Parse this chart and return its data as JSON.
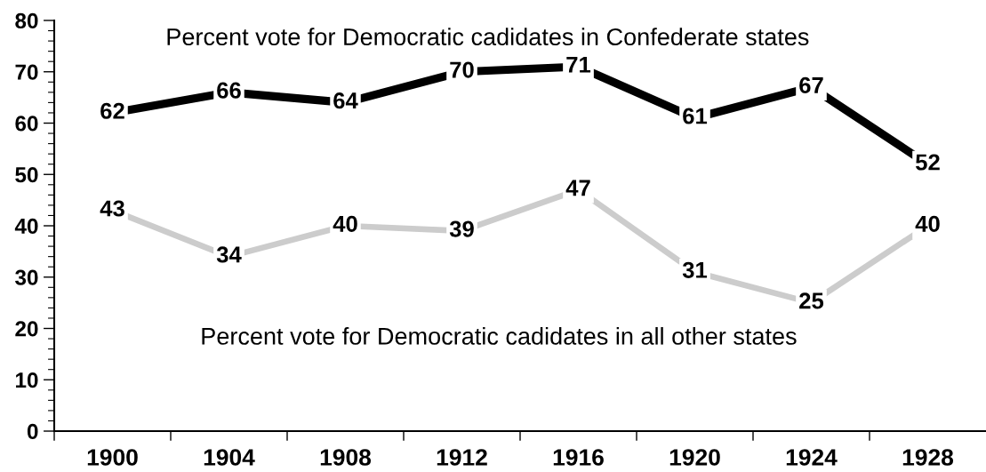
{
  "chart_data": {
    "type": "line",
    "categories": [
      "1900",
      "1904",
      "1908",
      "1912",
      "1916",
      "1920",
      "1924",
      "1928"
    ],
    "series": [
      {
        "name": "Percent vote for Democratic cadidates in Confederate states",
        "color": "#000000",
        "values": [
          62,
          66,
          64,
          70,
          71,
          61,
          67,
          52
        ]
      },
      {
        "name": "Percent vote for Democratic cadidates in all other states",
        "color": "#cccccc",
        "values": [
          43,
          34,
          40,
          39,
          47,
          31,
          25,
          40
        ]
      }
    ],
    "ylim": [
      0,
      80
    ],
    "yticks": [
      0,
      {
        "value": 2,
        "label": null
      },
      {
        "value": 4,
        "label": null
      },
      {
        "value": 6,
        "label": null
      },
      {
        "value": 8,
        "label": null
      },
      10,
      {
        "value": 12,
        "label": null
      },
      {
        "value": 14,
        "label": null
      },
      {
        "value": 16,
        "label": null
      },
      {
        "value": 18,
        "label": null
      },
      20,
      {
        "value": 22,
        "label": null
      },
      {
        "value": 24,
        "label": null
      },
      {
        "value": 26,
        "label": null
      },
      {
        "value": 28,
        "label": null
      },
      30,
      {
        "value": 32,
        "label": null
      },
      {
        "value": 34,
        "label": null
      },
      {
        "value": 36,
        "label": null
      },
      {
        "value": 38,
        "label": null
      },
      40,
      {
        "value": 42,
        "label": null
      },
      {
        "value": 44,
        "label": null
      },
      {
        "value": 46,
        "label": null
      },
      {
        "value": 48,
        "label": null
      },
      50,
      {
        "value": 52,
        "label": null
      },
      {
        "value": 54,
        "label": null
      },
      {
        "value": 56,
        "label": null
      },
      {
        "value": 58,
        "label": null
      },
      60,
      {
        "value": 62,
        "label": null
      },
      {
        "value": 64,
        "label": null
      },
      {
        "value": 66,
        "label": null
      },
      {
        "value": 68,
        "label": null
      },
      70,
      {
        "value": 72,
        "label": null
      },
      {
        "value": 74,
        "label": null
      },
      {
        "value": 76,
        "label": null
      },
      {
        "value": 78,
        "label": null
      },
      80
    ],
    "data_labels": true,
    "grid": false,
    "legend": false,
    "line_style": "solid"
  }
}
